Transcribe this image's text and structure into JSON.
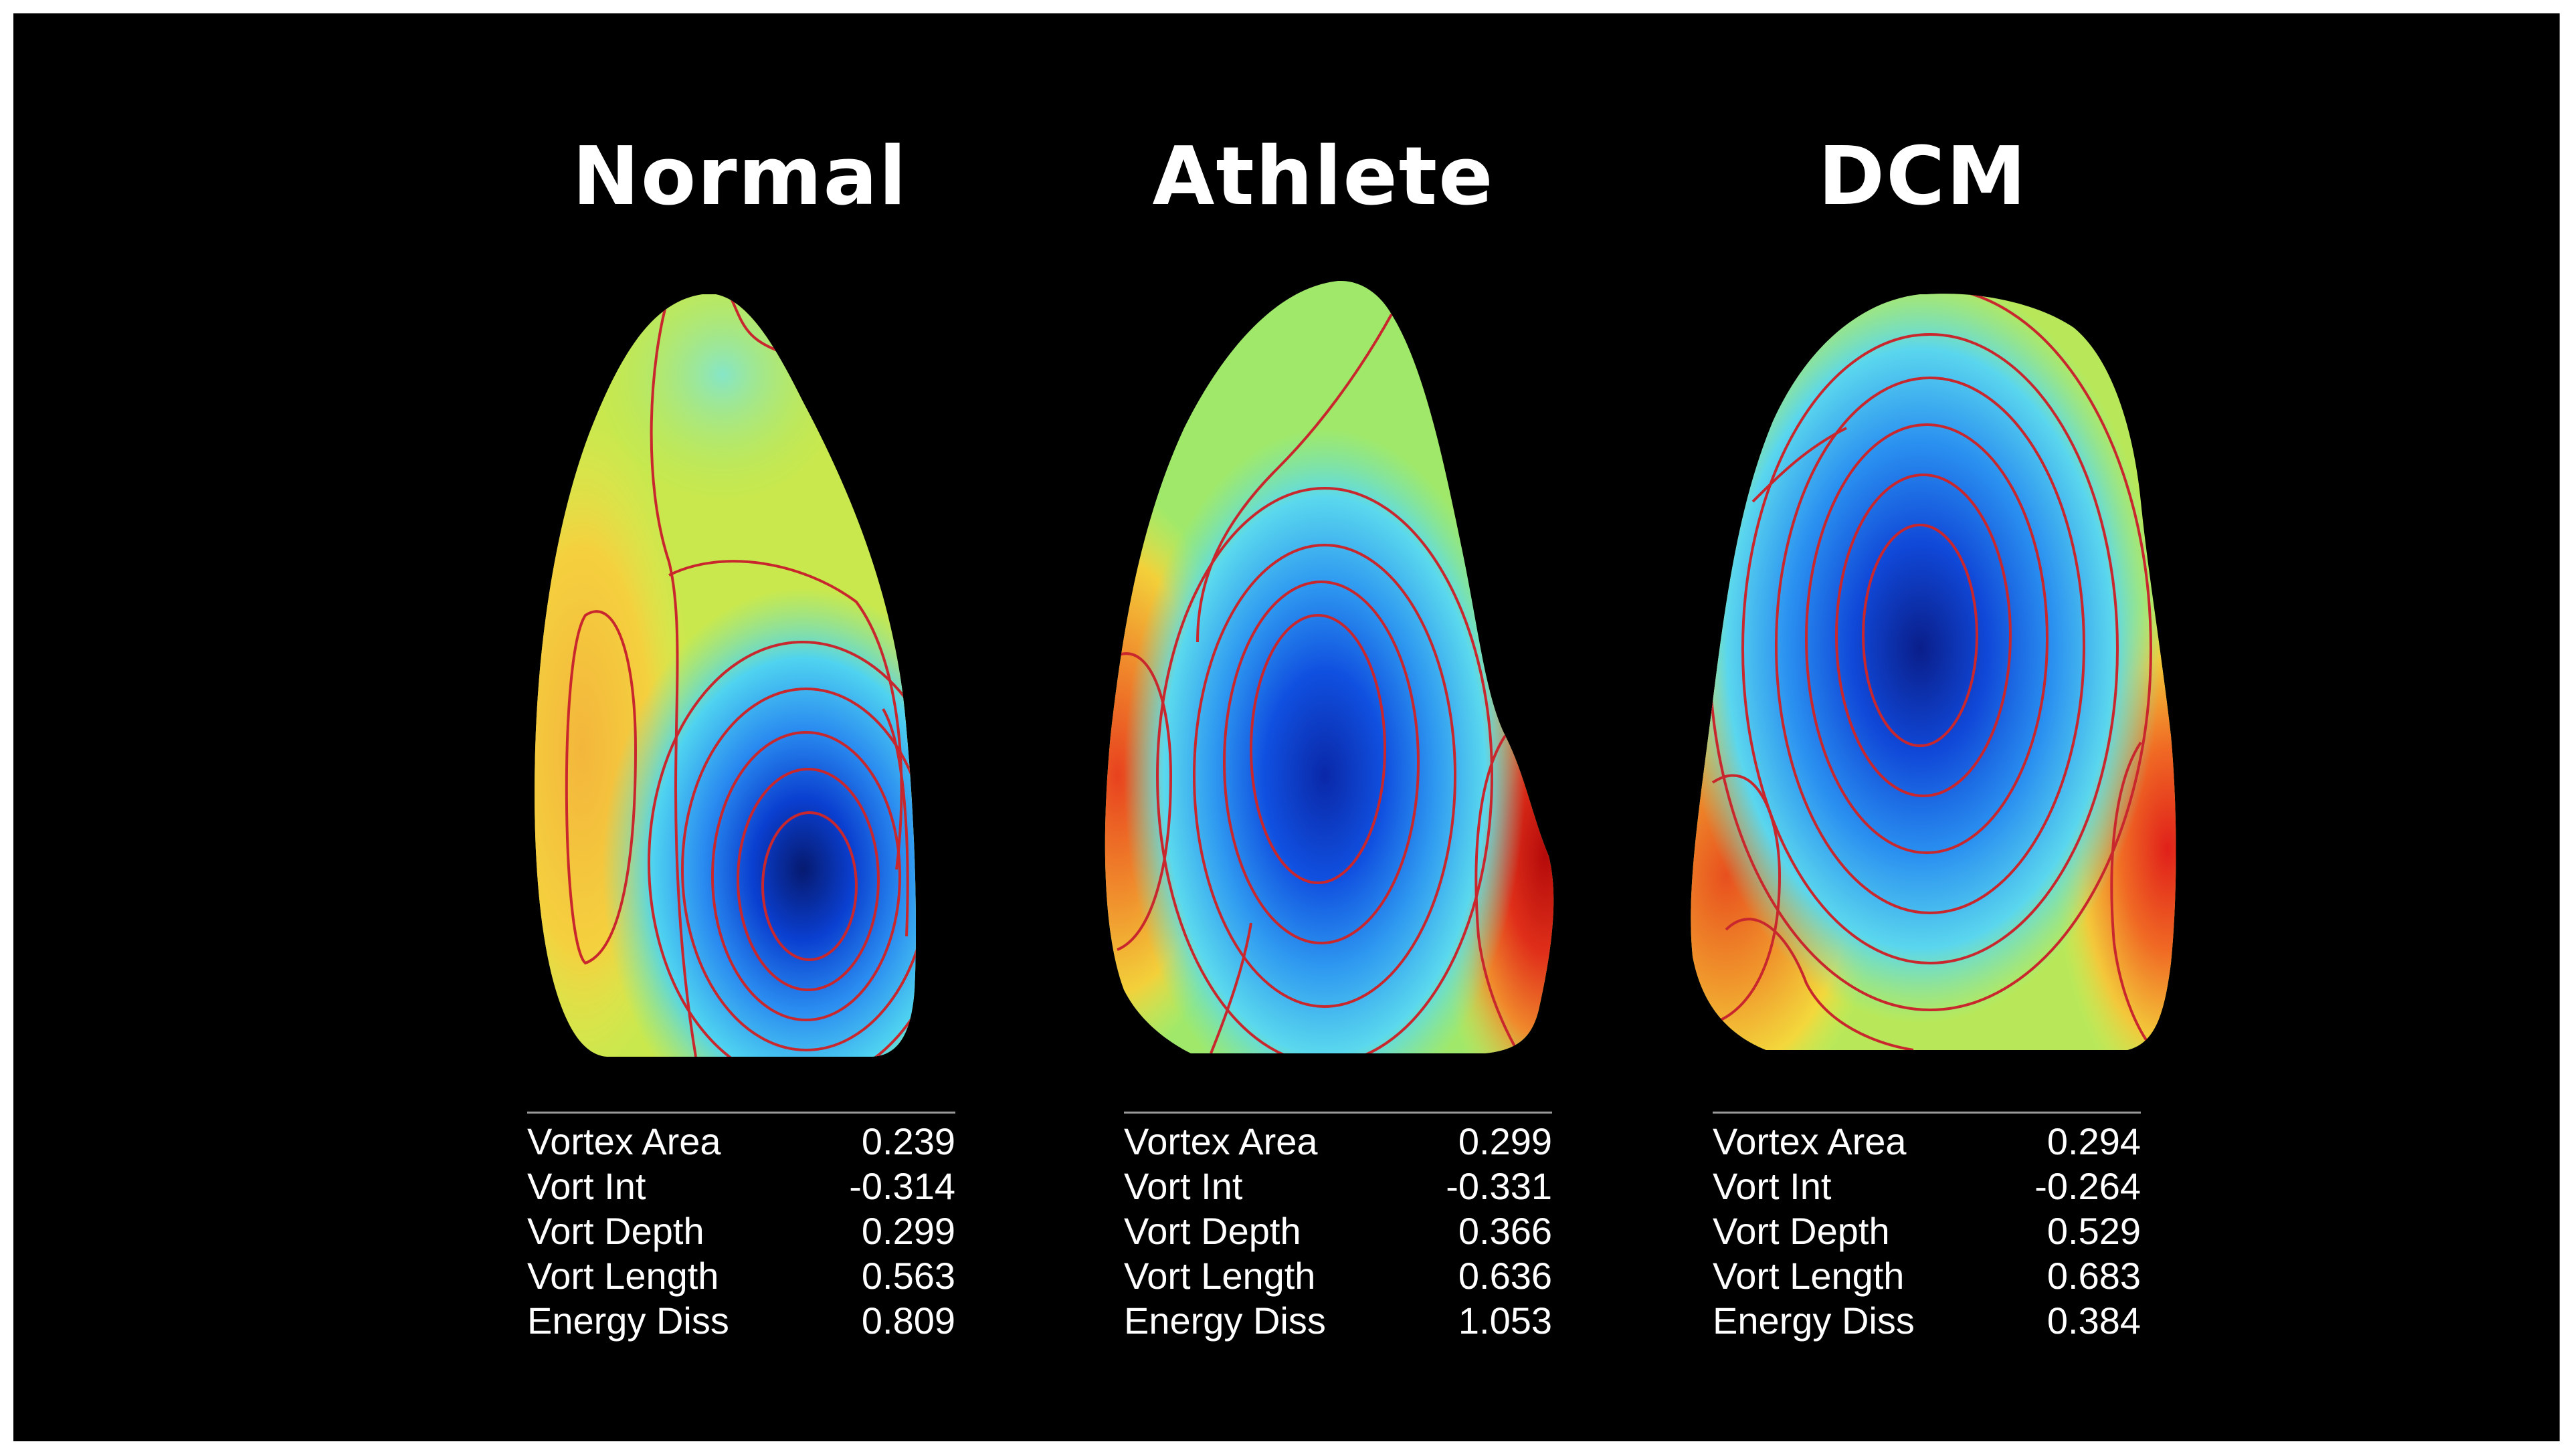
{
  "panels": [
    {
      "title": "Normal",
      "stats": [
        {
          "label": "Vortex Area",
          "value": "0.239"
        },
        {
          "label": "Vort Int",
          "value": "-0.314"
        },
        {
          "label": "Vort Depth",
          "value": "0.299"
        },
        {
          "label": "Vort Length",
          "value": "0.563"
        },
        {
          "label": "Energy Diss",
          "value": "0.809"
        }
      ]
    },
    {
      "title": "Athlete",
      "stats": [
        {
          "label": "Vortex Area",
          "value": "0.299"
        },
        {
          "label": "Vort Int",
          "value": "-0.331"
        },
        {
          "label": "Vort Depth",
          "value": "0.366"
        },
        {
          "label": "Vort Length",
          "value": "0.636"
        },
        {
          "label": "Energy Diss",
          "value": "1.053"
        }
      ]
    },
    {
      "title": "DCM",
      "stats": [
        {
          "label": "Vortex Area",
          "value": "0.294"
        },
        {
          "label": "Vort Int",
          "value": "-0.264"
        },
        {
          "label": "Vort Depth",
          "value": "0.529"
        },
        {
          "label": "Vort Length",
          "value": "0.683"
        },
        {
          "label": "Energy Diss",
          "value": "0.384"
        }
      ]
    }
  ],
  "colors": {
    "background": "#000000",
    "text": "#ffffff",
    "contour": "#c8282d",
    "vortex_core": "#0a1e78",
    "high": "#e01e14"
  }
}
